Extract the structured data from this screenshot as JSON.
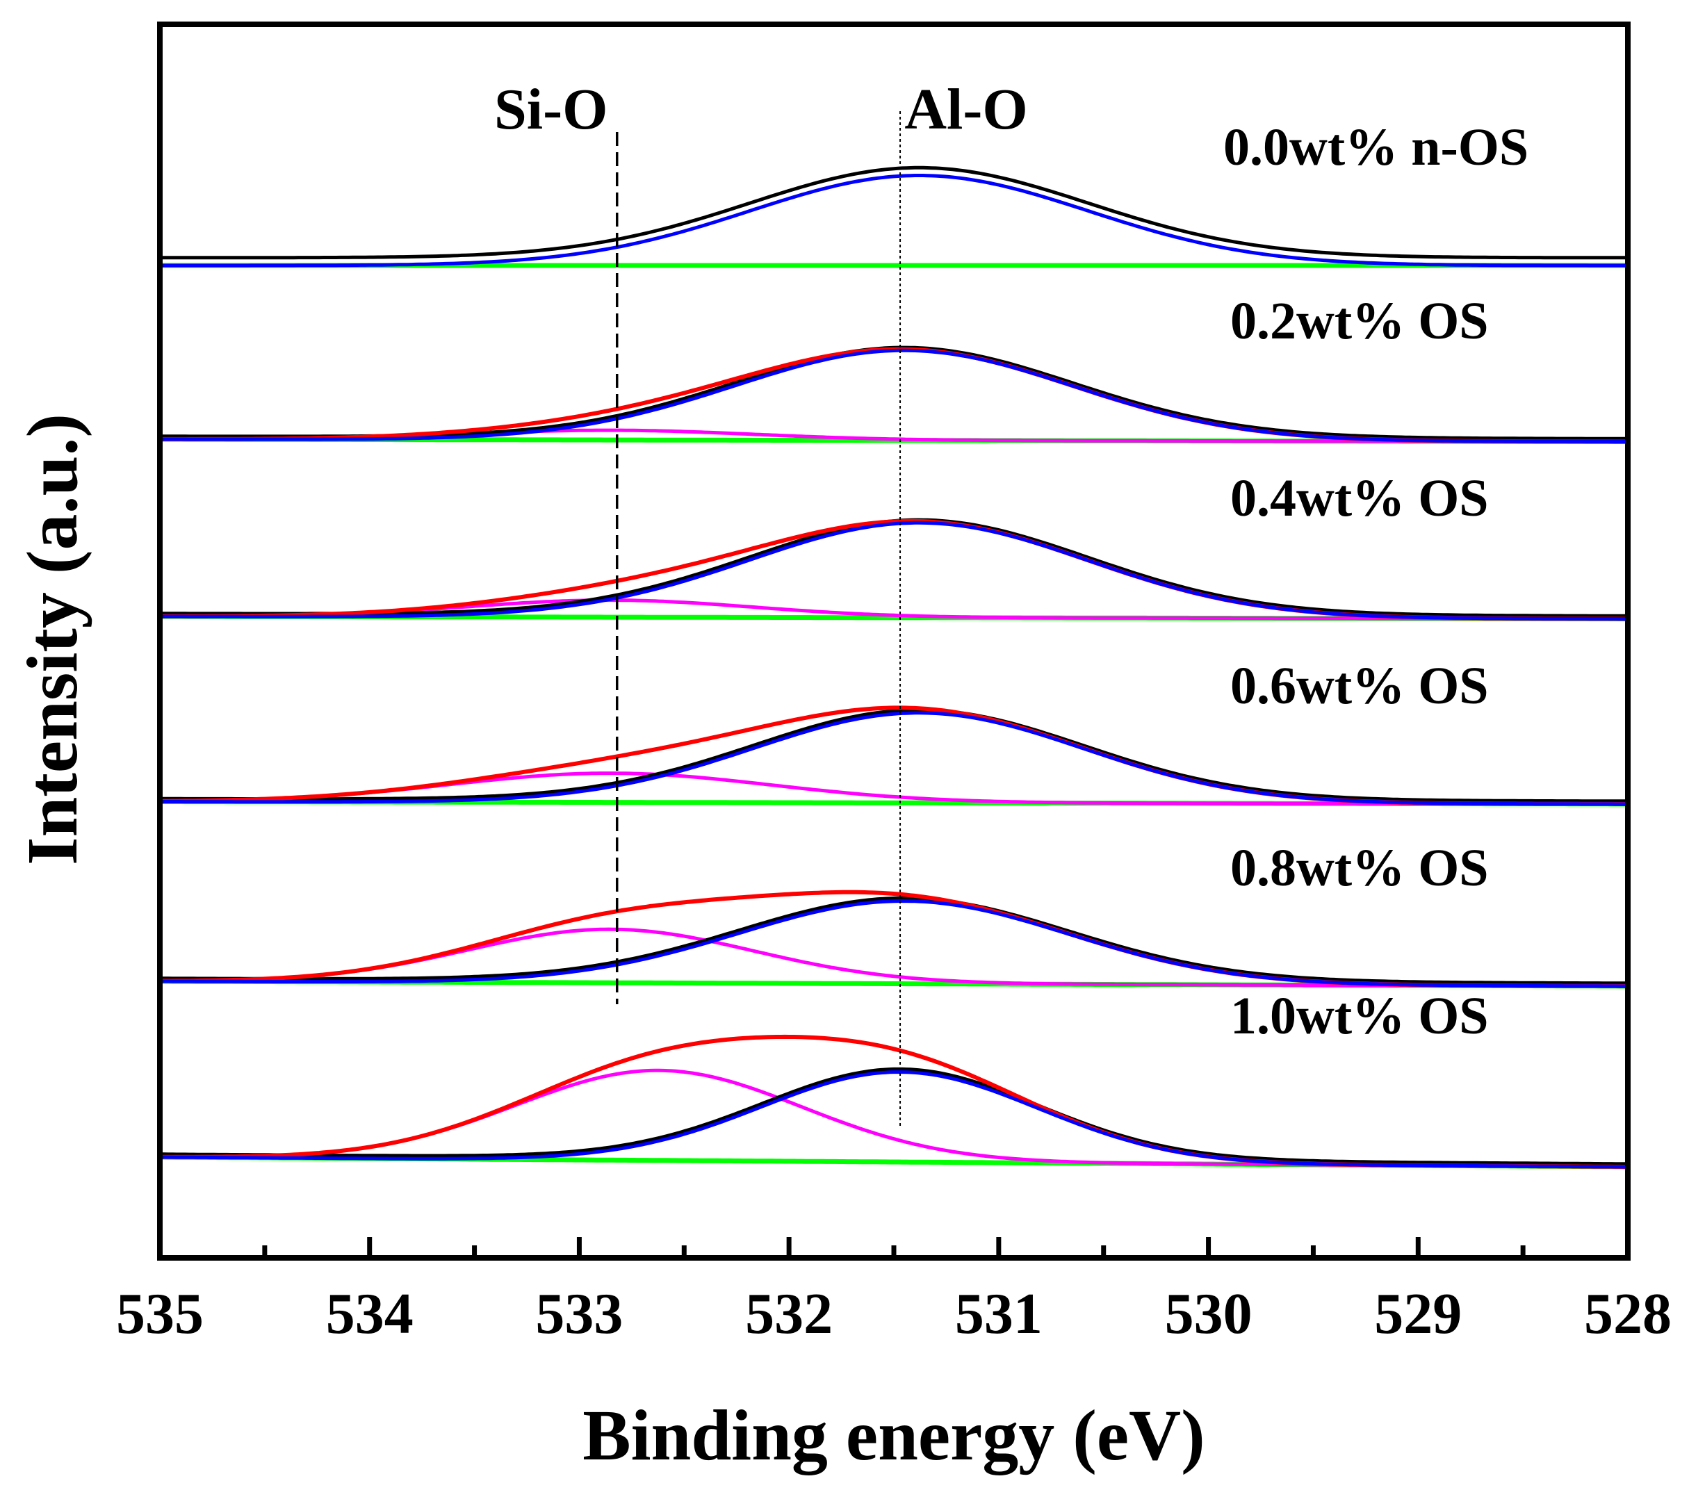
{
  "chart_data": {
    "type": "line",
    "title": "",
    "xlabel": "Binding energy (eV)",
    "ylabel": "Intensity (a.u.)",
    "xlim": [
      535,
      528
    ],
    "x_ticks": [
      "535",
      "534",
      "533",
      "532",
      "531",
      "530",
      "529",
      "528"
    ],
    "x_tick_values": [
      535,
      534,
      533,
      532,
      531,
      530,
      529,
      528
    ],
    "x_minor_ticks": [
      534.5,
      533.5,
      532.5,
      531.5,
      530.5,
      529.5,
      528.5
    ],
    "grid": false,
    "legend": "none",
    "reference_lines": [
      {
        "name": "si-o-line",
        "x": 532.82,
        "style": "dashed",
        "label": "Si-O"
      },
      {
        "name": "al-o-line",
        "x": 531.47,
        "style": "dotted",
        "label": "Al-O"
      }
    ],
    "colors": {
      "measured": "#000000",
      "envelope": "#ff0000",
      "al_o_component": "#0000ff",
      "si_o_component": "#ff00ff",
      "background": "#00ff00"
    },
    "spectra": [
      {
        "label": "1.0wt% OS",
        "offset": 5.0,
        "baseline_start": 0.02,
        "baseline_end": -0.02,
        "al_o": {
          "center": 531.47,
          "height": 0.37,
          "fwhm": 1.55
        },
        "si_o": {
          "center": 532.62,
          "height": 0.37,
          "fwhm": 1.6
        }
      },
      {
        "label": "0.8wt% OS",
        "offset": 4.0,
        "baseline_start": 0.02,
        "baseline_end": 0.0,
        "al_o": {
          "center": 531.45,
          "height": 0.34,
          "fwhm": 1.85
        },
        "si_o": {
          "center": 532.85,
          "height": 0.22,
          "fwhm": 1.6
        }
      },
      {
        "label": "0.6wt% OS",
        "offset": 3.0,
        "baseline_start": 0.01,
        "baseline_end": 0.0,
        "al_o": {
          "center": 531.38,
          "height": 0.37,
          "fwhm": 1.85
        },
        "si_o": {
          "center": 532.85,
          "height": 0.12,
          "fwhm": 1.8
        }
      },
      {
        "label": "0.4wt% OS",
        "offset": 2.0,
        "baseline_start": 0.0,
        "baseline_end": -0.01,
        "al_o": {
          "center": 531.38,
          "height": 0.39,
          "fwhm": 1.9
        },
        "si_o": {
          "center": 532.85,
          "height": 0.07,
          "fwhm": 1.6
        }
      },
      {
        "label": "0.2wt% OS",
        "offset": 1.0,
        "baseline_start": 0.0,
        "baseline_end": -0.01,
        "al_o": {
          "center": 531.45,
          "height": 0.37,
          "fwhm": 1.9
        },
        "si_o": {
          "center": 532.85,
          "height": 0.04,
          "fwhm": 1.6
        }
      },
      {
        "label": "0.0wt% n-OS",
        "offset": 0.0,
        "baseline_start": 0.0,
        "baseline_end": 0.0,
        "al_o": {
          "center": 531.38,
          "height": 0.37,
          "fwhm": 1.9
        },
        "si_o": null
      }
    ]
  }
}
